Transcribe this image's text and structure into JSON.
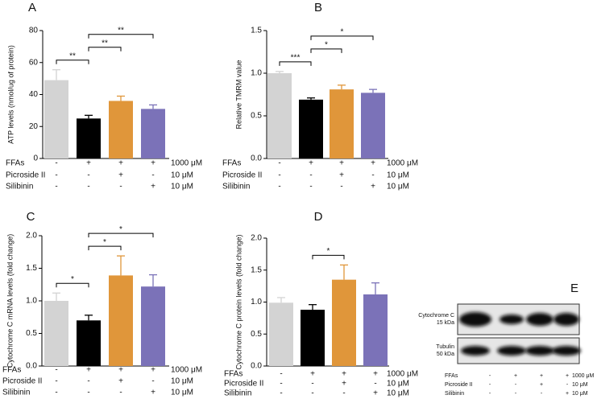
{
  "chart_data": [
    {
      "type": "bar",
      "panel": "A",
      "ylabel": "ATP levels (nmol/ug of protein)",
      "values": [
        49,
        25,
        36,
        31
      ],
      "errors": [
        6.5,
        2,
        3,
        2.5
      ],
      "colors": [
        "#d3d3d3",
        "#000000",
        "#e0963a",
        "#7b72b8"
      ],
      "ylim": [
        0,
        80
      ],
      "yticks": [
        0,
        20,
        40,
        60,
        80
      ],
      "significance": [
        {
          "pair": [
            0,
            1
          ],
          "label": "**"
        },
        {
          "pair": [
            1,
            2
          ],
          "label": "**"
        },
        {
          "pair": [
            1,
            3
          ],
          "label": "**"
        }
      ],
      "conditions": [
        {
          "name": "FFAs",
          "marks": [
            "-",
            "+",
            "+",
            "+"
          ],
          "dose": "1000 μM"
        },
        {
          "name": "Picroside II",
          "marks": [
            "-",
            "-",
            "+",
            "-"
          ],
          "dose": "10 μM"
        },
        {
          "name": "Silibinin",
          "marks": [
            "-",
            "-",
            "-",
            "+"
          ],
          "dose": "10 μM"
        }
      ]
    },
    {
      "type": "bar",
      "panel": "B",
      "ylabel": "Relative TMRM value",
      "values": [
        1.0,
        0.69,
        0.81,
        0.77
      ],
      "errors": [
        0.02,
        0.02,
        0.05,
        0.04
      ],
      "colors": [
        "#d3d3d3",
        "#000000",
        "#e0963a",
        "#7b72b8"
      ],
      "ylim": [
        0,
        1.5
      ],
      "yticks": [
        {
          "value": 0,
          "label": "0.0"
        },
        0.5,
        {
          "value": 1,
          "label": "1.0"
        },
        1.5
      ],
      "significance": [
        {
          "pair": [
            0,
            1
          ],
          "label": "***"
        },
        {
          "pair": [
            1,
            2
          ],
          "label": "*"
        },
        {
          "pair": [
            1,
            3
          ],
          "label": "*"
        }
      ],
      "conditions": [
        {
          "name": "FFAs",
          "marks": [
            "-",
            "+",
            "+",
            "+"
          ],
          "dose": "1000 μM"
        },
        {
          "name": "Picroside II",
          "marks": [
            "-",
            "-",
            "+",
            "-"
          ],
          "dose": "10 μM"
        },
        {
          "name": "Silibinin",
          "marks": [
            "-",
            "-",
            "-",
            "+"
          ],
          "dose": "10 μM"
        }
      ]
    },
    {
      "type": "bar",
      "panel": "C",
      "ylabel": "Cytochrome C mRNA levels (fold change)",
      "values": [
        1.0,
        0.7,
        1.39,
        1.22
      ],
      "errors": [
        0.12,
        0.08,
        0.3,
        0.18
      ],
      "colors": [
        "#d3d3d3",
        "#000000",
        "#e0963a",
        "#7b72b8"
      ],
      "ylim": [
        0,
        2
      ],
      "yticks": [
        {
          "value": 0,
          "label": "0.0"
        },
        0.5,
        {
          "value": 1,
          "label": "1.0"
        },
        1.5,
        {
          "value": 2,
          "label": "2.0"
        }
      ],
      "significance": [
        {
          "pair": [
            0,
            1
          ],
          "label": "*"
        },
        {
          "pair": [
            1,
            2
          ],
          "label": "*"
        },
        {
          "pair": [
            1,
            3
          ],
          "label": "*"
        }
      ],
      "conditions": [
        {
          "name": "FFAs",
          "marks": [
            "-",
            "+",
            "+",
            "+"
          ],
          "dose": "1000 μM"
        },
        {
          "name": "Picroside II",
          "marks": [
            "-",
            "-",
            "+",
            "-"
          ],
          "dose": "10 μM"
        },
        {
          "name": "Silibinin",
          "marks": [
            "-",
            "-",
            "-",
            "+"
          ],
          "dose": "10 μM"
        }
      ]
    },
    {
      "type": "bar",
      "panel": "D",
      "ylabel": "Cytochrome C protein levels (fold change)",
      "values": [
        0.99,
        0.88,
        1.35,
        1.12
      ],
      "errors": [
        0.08,
        0.08,
        0.23,
        0.18
      ],
      "colors": [
        "#d3d3d3",
        "#000000",
        "#e0963a",
        "#7b72b8"
      ],
      "ylim": [
        0,
        2
      ],
      "yticks": [
        {
          "value": 0,
          "label": "0.0"
        },
        0.5,
        {
          "value": 1,
          "label": "1.0"
        },
        1.5,
        {
          "value": 2,
          "label": "2.0"
        }
      ],
      "significance": [
        {
          "pair": [
            1,
            2
          ],
          "label": "*"
        }
      ],
      "conditions": [
        {
          "name": "FFAs",
          "marks": [
            "-",
            "+",
            "+",
            "+"
          ],
          "dose": "1000 μM"
        },
        {
          "name": "Picroside II",
          "marks": [
            "-",
            "-",
            "+",
            "-"
          ],
          "dose": "10 μM"
        },
        {
          "name": "Silibinin",
          "marks": [
            "-",
            "-",
            "-",
            "+"
          ],
          "dose": "10 μM"
        }
      ]
    }
  ],
  "blot": {
    "panel": "E",
    "bands": [
      {
        "name": "Cytochrome C",
        "size": "15 kDa"
      },
      {
        "name": "Tubulin",
        "size": "50 kDa"
      }
    ],
    "conditions": [
      {
        "name": "FFAs",
        "marks": [
          "-",
          "+",
          "+",
          "+"
        ],
        "dose": "1000 μM"
      },
      {
        "name": "Picroside II",
        "marks": [
          "-",
          "-",
          "+",
          "-"
        ],
        "dose": "10 μM"
      },
      {
        "name": "Silibinin",
        "marks": [
          "-",
          "-",
          "-",
          "+"
        ],
        "dose": "10 μM"
      }
    ]
  }
}
